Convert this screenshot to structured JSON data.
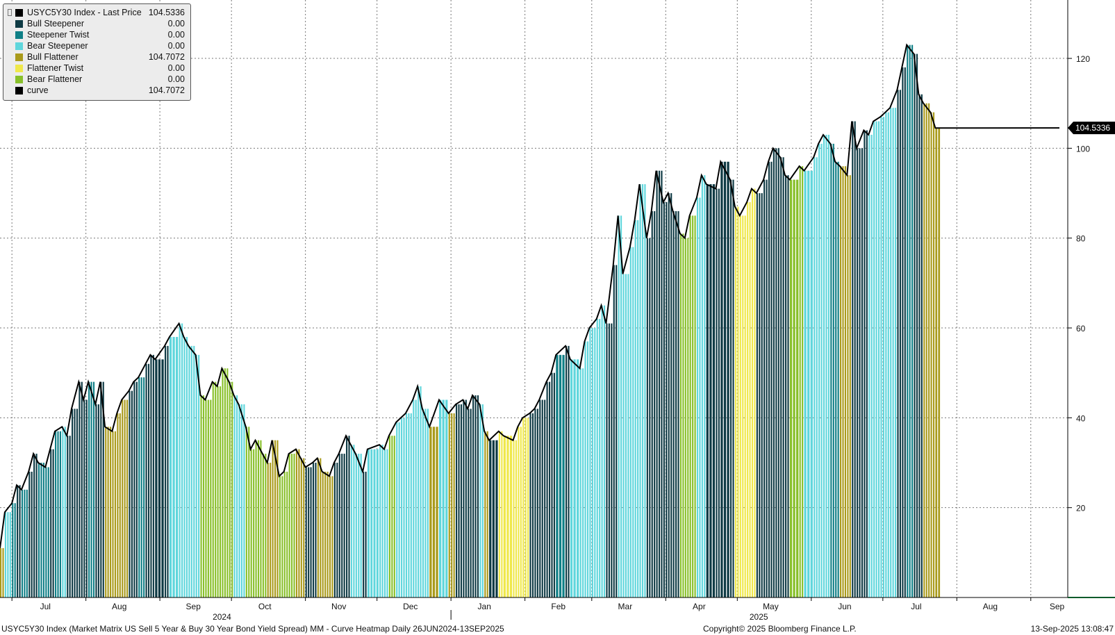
{
  "legend": {
    "title": "USYC5Y30 Index - Last Price",
    "title_value": "104.5336",
    "items": [
      {
        "label": "Bull Steepener",
        "value": "0.00",
        "color": "#0e3a44"
      },
      {
        "label": "Steepener Twist",
        "value": "0.00",
        "color": "#0f7f86"
      },
      {
        "label": "Bear Steepener",
        "value": "0.00",
        "color": "#5fd6dc"
      },
      {
        "label": "Bull Flattener",
        "value": "104.7072",
        "color": "#a99a1b"
      },
      {
        "label": "Flattener Twist",
        "value": "0.00",
        "color": "#efe84a"
      },
      {
        "label": "Bear Flattener",
        "value": "0.00",
        "color": "#88c02a"
      },
      {
        "label": "curve",
        "value": "104.7072",
        "color": "#000000"
      }
    ]
  },
  "last_price_label": "104.5336",
  "footer": {
    "left": "USYC5Y30 Index (Market Matrix US Sell 5 Year & Buy 30 Year Bond Yield Spread) MM - Curve Heatmap  Daily 26JUN2024-13SEP2025",
    "center": "Copyright© 2025 Bloomberg Finance L.P.",
    "right": "13-Sep-2025 13:08:47"
  },
  "chart_data": {
    "type": "bar",
    "title": "USYC5Y30 Index - Last Price",
    "x_tick_labels": [
      "Jul",
      "Aug",
      "Sep",
      "Oct",
      "Nov",
      "Dec",
      "Jan",
      "Feb",
      "Mar",
      "Apr",
      "May",
      "Jun",
      "Jul",
      "Aug",
      "Sep"
    ],
    "year_labels": [
      "2024",
      "2025"
    ],
    "y_ticks": [
      20,
      40,
      60,
      80,
      100,
      120
    ],
    "ylim": [
      0,
      133
    ],
    "grid": true,
    "legend_position": "top-left",
    "last_value": 104.5336,
    "categories_legend": [
      "Bull Steepener",
      "Steepener Twist",
      "Bear Steepener",
      "Bull Flattener",
      "Flattener Twist",
      "Bear Flattener"
    ],
    "anchors": [
      [
        "2024-06-26",
        11,
        "BF"
      ],
      [
        "2024-06-28",
        19,
        "BS"
      ],
      [
        "2024-07-01",
        21,
        "ST"
      ],
      [
        "2024-07-03",
        25,
        "BuS"
      ],
      [
        "2024-07-05",
        24,
        "ST"
      ],
      [
        "2024-07-08",
        28,
        "BuS"
      ],
      [
        "2024-07-10",
        32,
        "BuS"
      ],
      [
        "2024-07-12",
        30,
        "ST"
      ],
      [
        "2024-07-15",
        29,
        "ST"
      ],
      [
        "2024-07-17",
        33,
        "BuS"
      ],
      [
        "2024-07-19",
        37,
        "ST"
      ],
      [
        "2024-07-22",
        38,
        "BS"
      ],
      [
        "2024-07-24",
        36,
        "BuS"
      ],
      [
        "2024-07-26",
        42,
        "BuS"
      ],
      [
        "2024-07-29",
        48,
        "BuS"
      ],
      [
        "2024-07-31",
        44,
        "BuS"
      ],
      [
        "2024-08-02",
        48,
        "ST"
      ],
      [
        "2024-08-05",
        43,
        "BuS"
      ],
      [
        "2024-08-07",
        48,
        "BuS"
      ],
      [
        "2024-08-09",
        38,
        "BF"
      ],
      [
        "2024-08-12",
        37,
        "BF"
      ],
      [
        "2024-08-14",
        41,
        "BF"
      ],
      [
        "2024-08-16",
        44,
        "BF"
      ],
      [
        "2024-08-19",
        46,
        "BuS"
      ],
      [
        "2024-08-21",
        48,
        "BuS"
      ],
      [
        "2024-08-23",
        49,
        "ST"
      ],
      [
        "2024-08-26",
        52,
        "BuS"
      ],
      [
        "2024-08-28",
        54,
        "BuS"
      ],
      [
        "2024-08-30",
        53,
        "BuS"
      ],
      [
        "2024-09-03",
        56,
        "BuS"
      ],
      [
        "2024-09-05",
        58,
        "BS"
      ],
      [
        "2024-09-09",
        61,
        "BS"
      ],
      [
        "2024-09-11",
        58,
        "BS"
      ],
      [
        "2024-09-13",
        56,
        "BS"
      ],
      [
        "2024-09-16",
        54,
        "BS"
      ],
      [
        "2024-09-18",
        45,
        "BeF"
      ],
      [
        "2024-09-20",
        44,
        "BeF"
      ],
      [
        "2024-09-23",
        48,
        "BeF"
      ],
      [
        "2024-09-25",
        47,
        "BeF"
      ],
      [
        "2024-09-27",
        51,
        "BeF"
      ],
      [
        "2024-09-30",
        48,
        "BeF"
      ],
      [
        "2024-10-02",
        45,
        "BS"
      ],
      [
        "2024-10-04",
        43,
        "BS"
      ],
      [
        "2024-10-07",
        38,
        "BeF"
      ],
      [
        "2024-10-09",
        33,
        "BeF"
      ],
      [
        "2024-10-11",
        35,
        "BeF"
      ],
      [
        "2024-10-14",
        32,
        "BeF"
      ],
      [
        "2024-10-16",
        30,
        "BF"
      ],
      [
        "2024-10-18",
        35,
        "BF"
      ],
      [
        "2024-10-21",
        27,
        "BeF"
      ],
      [
        "2024-10-23",
        28,
        "BeF"
      ],
      [
        "2024-10-25",
        32,
        "BeF"
      ],
      [
        "2024-10-28",
        33,
        "BF"
      ],
      [
        "2024-10-30",
        31,
        "BF"
      ],
      [
        "2024-11-01",
        29,
        "BuS"
      ],
      [
        "2024-11-04",
        30,
        "BuS"
      ],
      [
        "2024-11-06",
        31,
        "BF"
      ],
      [
        "2024-11-08",
        28,
        "BF"
      ],
      [
        "2024-11-11",
        27,
        "BF"
      ],
      [
        "2024-11-13",
        30,
        "BuS"
      ],
      [
        "2024-11-15",
        32,
        "BuS"
      ],
      [
        "2024-11-18",
        36,
        "BuS"
      ],
      [
        "2024-11-20",
        34,
        "BS"
      ],
      [
        "2024-11-22",
        32,
        "BS"
      ],
      [
        "2024-11-25",
        28,
        "BuS"
      ],
      [
        "2024-11-27",
        33,
        "BS"
      ],
      [
        "2024-12-02",
        34,
        "BS"
      ],
      [
        "2024-12-04",
        33,
        "BS"
      ],
      [
        "2024-12-06",
        36,
        "BeF"
      ],
      [
        "2024-12-09",
        39,
        "BS"
      ],
      [
        "2024-12-11",
        40,
        "BS"
      ],
      [
        "2024-12-13",
        41,
        "BS"
      ],
      [
        "2024-12-16",
        44,
        "BS"
      ],
      [
        "2024-12-18",
        47,
        "BS"
      ],
      [
        "2024-12-20",
        42,
        "BS"
      ],
      [
        "2024-12-23",
        38,
        "BF"
      ],
      [
        "2024-12-27",
        44,
        "BS"
      ],
      [
        "2024-12-31",
        41,
        "BF"
      ],
      [
        "2025-01-03",
        43,
        "BuS"
      ],
      [
        "2025-01-06",
        44,
        "BuS"
      ],
      [
        "2025-01-08",
        42,
        "BuS"
      ],
      [
        "2025-01-10",
        45,
        "BuS"
      ],
      [
        "2025-01-13",
        43,
        "BS"
      ],
      [
        "2025-01-15",
        37,
        "BF"
      ],
      [
        "2025-01-17",
        35,
        "BuS"
      ],
      [
        "2025-01-21",
        37,
        "FT"
      ],
      [
        "2025-01-23",
        36,
        "FT"
      ],
      [
        "2025-01-27",
        35,
        "FT"
      ],
      [
        "2025-01-29",
        38,
        "FT"
      ],
      [
        "2025-01-31",
        40,
        "FT"
      ],
      [
        "2025-02-03",
        41,
        "BuS"
      ],
      [
        "2025-02-05",
        42,
        "BuS"
      ],
      [
        "2025-02-07",
        44,
        "BuS"
      ],
      [
        "2025-02-10",
        48,
        "BuS"
      ],
      [
        "2025-02-12",
        50,
        "BuS"
      ],
      [
        "2025-02-14",
        54,
        "ST"
      ],
      [
        "2025-02-18",
        56,
        "BuS"
      ],
      [
        "2025-02-20",
        53,
        "BS"
      ],
      [
        "2025-02-24",
        51,
        "BS"
      ],
      [
        "2025-02-26",
        57,
        "BS"
      ],
      [
        "2025-02-28",
        60,
        "BS"
      ],
      [
        "2025-03-03",
        62,
        "BS"
      ],
      [
        "2025-03-05",
        65,
        "BS"
      ],
      [
        "2025-03-07",
        61,
        "BuS"
      ],
      [
        "2025-03-10",
        74,
        "BuS"
      ],
      [
        "2025-03-12",
        85,
        "BS"
      ],
      [
        "2025-03-14",
        72,
        "BS"
      ],
      [
        "2025-03-17",
        78,
        "BS"
      ],
      [
        "2025-03-19",
        84,
        "BS"
      ],
      [
        "2025-03-21",
        92,
        "BS"
      ],
      [
        "2025-03-24",
        80,
        "BuS"
      ],
      [
        "2025-03-26",
        86,
        "BuS"
      ],
      [
        "2025-03-28",
        95,
        "BuS"
      ],
      [
        "2025-03-31",
        88,
        "BuS"
      ],
      [
        "2025-04-02",
        90,
        "BuS"
      ],
      [
        "2025-04-04",
        86,
        "BuS"
      ],
      [
        "2025-04-07",
        81,
        "BeF"
      ],
      [
        "2025-04-09",
        80,
        "BeF"
      ],
      [
        "2025-04-11",
        85,
        "BeF"
      ],
      [
        "2025-04-14",
        89,
        "BS"
      ],
      [
        "2025-04-16",
        94,
        "BS"
      ],
      [
        "2025-04-18",
        92,
        "BuS"
      ],
      [
        "2025-04-22",
        91,
        "BuS"
      ],
      [
        "2025-04-24",
        97,
        "BuS"
      ],
      [
        "2025-04-28",
        93,
        "BuS"
      ],
      [
        "2025-04-30",
        87,
        "FT"
      ],
      [
        "2025-05-02",
        85,
        "FT"
      ],
      [
        "2025-05-05",
        88,
        "FT"
      ],
      [
        "2025-05-07",
        91,
        "FT"
      ],
      [
        "2025-05-09",
        90,
        "BuS"
      ],
      [
        "2025-05-12",
        93,
        "BuS"
      ],
      [
        "2025-05-14",
        97,
        "BuS"
      ],
      [
        "2025-05-16",
        100,
        "BuS"
      ],
      [
        "2025-05-19",
        98,
        "BuS"
      ],
      [
        "2025-05-21",
        94,
        "BuS"
      ],
      [
        "2025-05-23",
        93,
        "BeF"
      ],
      [
        "2025-05-27",
        96,
        "BeF"
      ],
      [
        "2025-05-29",
        95,
        "BS"
      ],
      [
        "2025-06-02",
        98,
        "BS"
      ],
      [
        "2025-06-04",
        101,
        "BS"
      ],
      [
        "2025-06-06",
        103,
        "BS"
      ],
      [
        "2025-06-09",
        101,
        "ST"
      ],
      [
        "2025-06-11",
        97,
        "ST"
      ],
      [
        "2025-06-13",
        96,
        "BF"
      ],
      [
        "2025-06-16",
        94,
        "BF"
      ],
      [
        "2025-06-18",
        106,
        "BuS"
      ],
      [
        "2025-06-20",
        100,
        "BuS"
      ],
      [
        "2025-06-23",
        104,
        "BuS"
      ],
      [
        "2025-06-25",
        103,
        "BS"
      ],
      [
        "2025-06-27",
        106,
        "BS"
      ],
      [
        "2025-06-30",
        107,
        "BS"
      ],
      [
        "2025-07-02",
        108,
        "BS"
      ],
      [
        "2025-07-04",
        109,
        "BS"
      ],
      [
        "2025-07-07",
        113,
        "BuS"
      ],
      [
        "2025-07-09",
        118,
        "BuS"
      ],
      [
        "2025-07-11",
        123,
        "ST"
      ],
      [
        "2025-07-14",
        121,
        "BuS"
      ],
      [
        "2025-07-16",
        112,
        "BuS"
      ],
      [
        "2025-07-18",
        110,
        "BF"
      ],
      [
        "2025-07-21",
        108,
        "BF"
      ],
      [
        "2025-07-23",
        104.5,
        "BF"
      ]
    ],
    "xaxis_range": [
      "2024-06-26",
      "2025-09-13"
    ],
    "note_on_dates": "x-axis month labels as printed"
  }
}
